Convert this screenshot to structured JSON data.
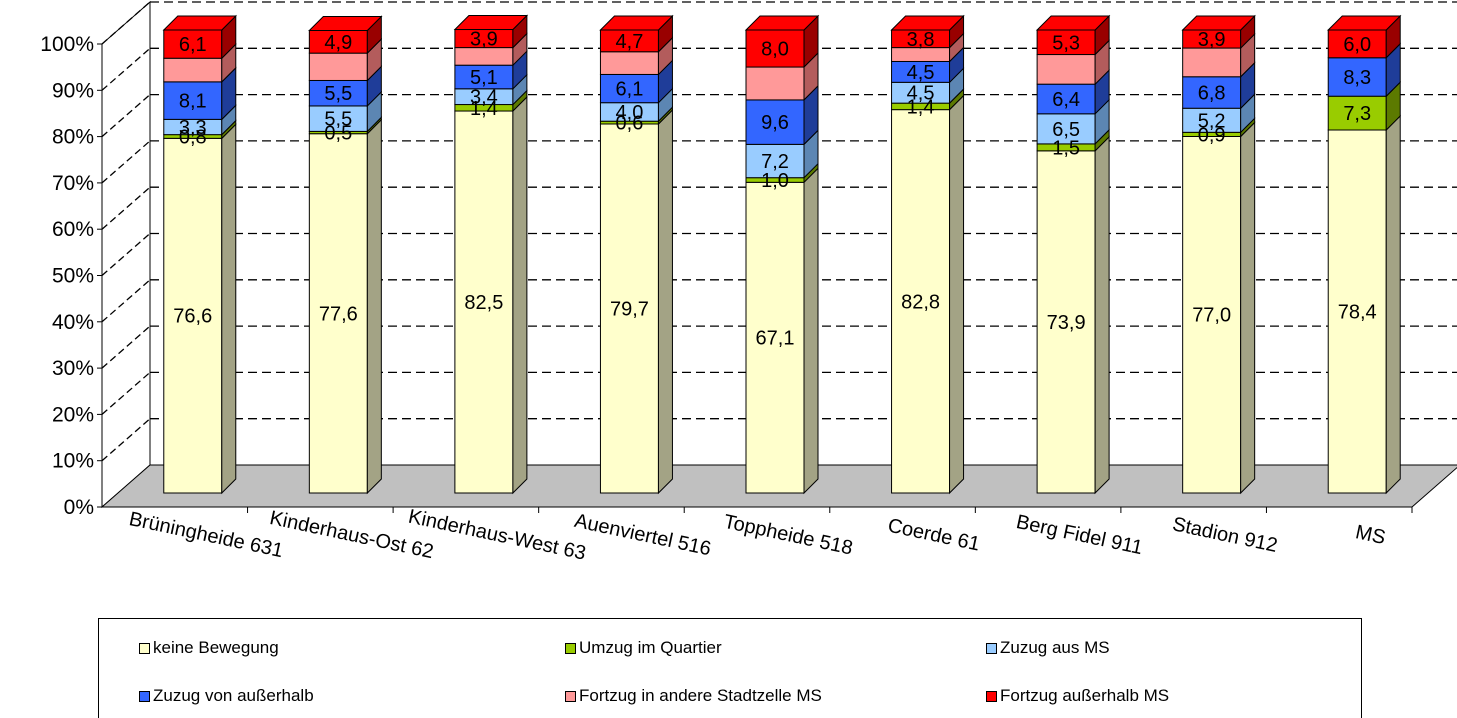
{
  "chart_data": {
    "type": "bar",
    "stacked": true,
    "percent_stacked": true,
    "three_d": true,
    "categories": [
      "Brüningheide 631",
      "Kinderhaus-Ost 62",
      "Kinderhaus-West 63",
      "Auenviertel 516",
      "Toppheide 518",
      "Coerde 61",
      "Berg Fidel 911",
      "Stadion 912",
      "MS"
    ],
    "y_ticks": [
      "0%",
      "10%",
      "20%",
      "30%",
      "40%",
      "50%",
      "60%",
      "70%",
      "80%",
      "90%",
      "100%"
    ],
    "ylim": [
      0,
      100
    ],
    "grid": true,
    "legend_position": "bottom",
    "series": [
      {
        "name": "keine Bewegung",
        "color": "#ffffcc",
        "side_color": "#a3a385",
        "values": [
          76.6,
          77.6,
          82.5,
          79.7,
          67.1,
          82.8,
          73.9,
          77.0,
          78.4
        ],
        "labels": [
          "76,6",
          "77,6",
          "82,5",
          "79,7",
          "67,1",
          "82,8",
          "73,9",
          "77,0",
          "78,4"
        ]
      },
      {
        "name": "Umzug im Quartier",
        "color": "#99cc00",
        "side_color": "#5c7a00",
        "values": [
          0.8,
          0.5,
          1.4,
          0.6,
          1.0,
          1.4,
          1.5,
          0.9,
          7.3
        ],
        "labels": [
          "0,8",
          "0,5",
          "1,4",
          "0,6",
          "1,0",
          "1,4",
          "1,5",
          "0,9",
          "7,3"
        ]
      },
      {
        "name": "Zuzug aus MS",
        "color": "#99ccff",
        "side_color": "#5c86b3",
        "values": [
          3.3,
          5.5,
          3.4,
          4.0,
          7.2,
          4.5,
          6.5,
          5.2,
          0
        ],
        "labels": [
          "3,3",
          "5,5",
          "3,4",
          "4,0",
          "7,2",
          "4,5",
          "6,5",
          "5,2",
          ""
        ]
      },
      {
        "name": "Zuzug von außerhalb",
        "color": "#3366ff",
        "side_color": "#1f3d99",
        "values": [
          8.1,
          5.5,
          5.1,
          6.1,
          9.6,
          4.5,
          6.4,
          6.8,
          8.3
        ],
        "labels": [
          "8,1",
          "5,5",
          "5,1",
          "6,1",
          "9,6",
          "4,5",
          "6,4",
          "6,8",
          "8,3"
        ]
      },
      {
        "name": "Fortzug in andere Stadtzelle MS",
        "color": "#ff9999",
        "side_color": "#b35c5c",
        "values": [
          5.1,
          5.9,
          3.8,
          4.9,
          7.1,
          3.0,
          6.4,
          6.2,
          0
        ],
        "labels": [
          "",
          "",
          "",
          "",
          "",
          "",
          "",
          "",
          ""
        ]
      },
      {
        "name": "Fortzug außerhalb MS",
        "color": "#ff0000",
        "side_color": "#990000",
        "values": [
          6.1,
          4.9,
          3.9,
          4.7,
          8.0,
          3.8,
          5.3,
          3.9,
          6.0
        ],
        "labels": [
          "6,1",
          "4,9",
          "3,9",
          "4,7",
          "8,0",
          "3,8",
          "5,3",
          "3,9",
          "6,0"
        ]
      }
    ]
  }
}
